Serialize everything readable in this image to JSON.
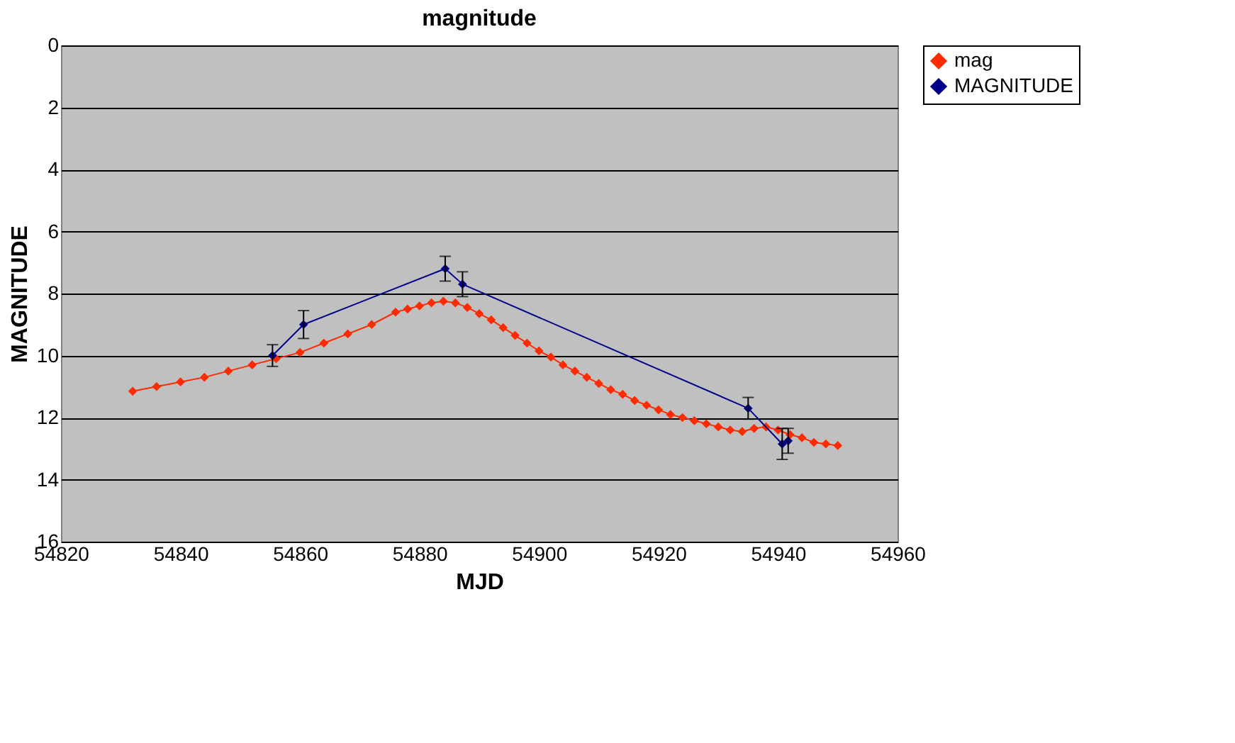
{
  "chart_data": {
    "type": "line",
    "title": "magnitude",
    "xlabel": "MJD",
    "ylabel": "MAGNITUDE",
    "xlim": [
      54820,
      54960
    ],
    "xticks": [
      54820,
      54840,
      54860,
      54880,
      54900,
      54920,
      54940,
      54960
    ],
    "ylim": [
      16,
      0
    ],
    "yticks": [
      0,
      2,
      4,
      6,
      8,
      10,
      12,
      14,
      16
    ],
    "grid": "y",
    "legend": "right",
    "marker": "diamond",
    "line_style": "solid",
    "series": [
      {
        "name": "mag",
        "color": "#ff2a00",
        "x": [
          54832,
          54836,
          54840,
          54844,
          54848,
          54852,
          54856,
          54860,
          54864,
          54868,
          54872,
          54876,
          54878,
          54880,
          54882,
          54884,
          54886,
          54888,
          54890,
          54892,
          54894,
          54896,
          54898,
          54900,
          54902,
          54904,
          54906,
          54908,
          54910,
          54912,
          54914,
          54916,
          54918,
          54920,
          54922,
          54924,
          54926,
          54928,
          54930,
          54932,
          54934,
          54936,
          54938,
          54940,
          54942,
          54944,
          54946,
          54948,
          54950
        ],
        "values": [
          11.15,
          11.0,
          10.85,
          10.7,
          10.5,
          10.3,
          10.1,
          9.9,
          9.6,
          9.3,
          9.0,
          8.6,
          8.5,
          8.4,
          8.3,
          8.25,
          8.3,
          8.45,
          8.65,
          8.85,
          9.1,
          9.35,
          9.6,
          9.85,
          10.05,
          10.3,
          10.5,
          10.7,
          10.9,
          11.1,
          11.25,
          11.45,
          11.6,
          11.75,
          11.9,
          12.0,
          12.1,
          12.2,
          12.3,
          12.4,
          12.45,
          12.35,
          12.3,
          12.4,
          12.55,
          12.65,
          12.8,
          12.85,
          12.9
        ]
      },
      {
        "name": "MAGNITUDE",
        "color": "#00008b",
        "x": [
          54855.4,
          54860.6,
          54884.3,
          54887.2,
          54935.0,
          54940.7,
          54941.7
        ],
        "values": [
          10.0,
          9.0,
          7.2,
          7.7,
          11.7,
          12.85,
          12.75
        ],
        "errors": [
          0.35,
          0.45,
          0.4,
          0.4,
          0.35,
          0.5,
          0.4
        ]
      }
    ]
  }
}
